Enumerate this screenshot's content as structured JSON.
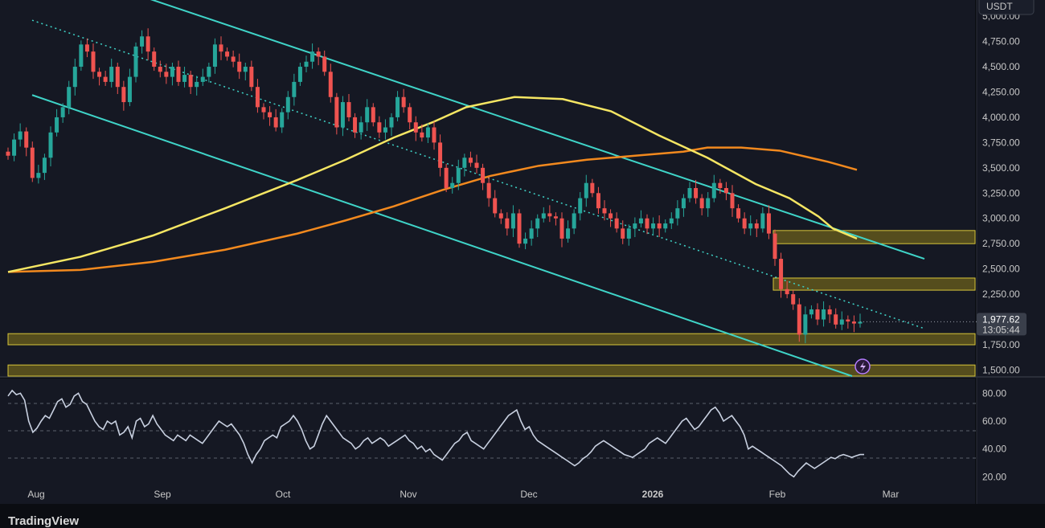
{
  "chart_data": [
    {
      "type": "candlestick",
      "currency_label": "USDT",
      "x_ticks": [
        "Aug",
        "Sep",
        "Oct",
        "Nov",
        "Dec",
        "2026",
        "Feb",
        "Mar"
      ],
      "y_ticks": [
        "5,000.00",
        "4,750.00",
        "4,500.00",
        "4,250.00",
        "4,000.00",
        "3,750.00",
        "3,500.00",
        "3,250.00",
        "3,000.00",
        "2,750.00",
        "2,500.00",
        "2,250.00",
        "1,750.00",
        "1,500.00"
      ],
      "ylim": [
        1440,
        5160
      ],
      "last_price": "1,977.62",
      "countdown": "13:05:44",
      "closes": [
        3620,
        3780,
        3860,
        3700,
        3400,
        3450,
        3600,
        3850,
        4000,
        4100,
        4300,
        4500,
        4720,
        4650,
        4450,
        4400,
        4350,
        4500,
        4300,
        4150,
        4400,
        4700,
        4800,
        4650,
        4500,
        4450,
        4400,
        4500,
        4350,
        4420,
        4300,
        4350,
        4400,
        4500,
        4720,
        4650,
        4600,
        4550,
        4450,
        4500,
        4300,
        4100,
        4050,
        4000,
        3900,
        4050,
        4200,
        4350,
        4500,
        4550,
        4650,
        4600,
        4450,
        4200,
        3900,
        4150,
        4000,
        3850,
        3950,
        4100,
        3950,
        3850,
        3900,
        4000,
        4200,
        4100,
        3950,
        3850,
        3800,
        3900,
        3750,
        3500,
        3300,
        3350,
        3500,
        3600,
        3550,
        3500,
        3350,
        3200,
        3050,
        3000,
        2900,
        3050,
        2750,
        2800,
        2900,
        3000,
        3050,
        3020,
        3000,
        2800,
        2900,
        3050,
        3200,
        3350,
        3250,
        3100,
        3050,
        3000,
        2900,
        2800,
        2900,
        2950,
        3000,
        2900,
        2950,
        2900,
        2950,
        3000,
        3100,
        3200,
        3300,
        3200,
        3100,
        3200,
        3350,
        3300,
        3250,
        3100,
        3000,
        2900,
        2950,
        2900,
        3050,
        2850,
        2600,
        2300,
        2250,
        2150,
        1850,
        2050,
        2100,
        2000,
        2100,
        2050,
        1950,
        2000,
        1980,
        1960,
        1977.62
      ],
      "ma_fast": [
        [
          0,
          2470
        ],
        [
          15,
          2620
        ],
        [
          30,
          2830
        ],
        [
          45,
          3100
        ],
        [
          60,
          3380
        ],
        [
          70,
          3580
        ],
        [
          80,
          3800
        ],
        [
          88,
          3950
        ],
        [
          95,
          4100
        ],
        [
          105,
          4200
        ],
        [
          115,
          4180
        ],
        [
          125,
          4060
        ],
        [
          135,
          3820
        ],
        [
          145,
          3600
        ],
        [
          155,
          3340
        ],
        [
          162,
          3200
        ],
        [
          168,
          3020
        ],
        [
          171,
          2900
        ],
        [
          176,
          2800
        ]
      ],
      "ma_slow": [
        [
          0,
          2470
        ],
        [
          15,
          2490
        ],
        [
          30,
          2570
        ],
        [
          45,
          2690
        ],
        [
          60,
          2850
        ],
        [
          70,
          2980
        ],
        [
          80,
          3120
        ],
        [
          90,
          3280
        ],
        [
          100,
          3420
        ],
        [
          110,
          3520
        ],
        [
          120,
          3580
        ],
        [
          130,
          3620
        ],
        [
          140,
          3660
        ],
        [
          145,
          3700
        ],
        [
          152,
          3700
        ],
        [
          160,
          3670
        ],
        [
          170,
          3560
        ],
        [
          176,
          3480
        ]
      ],
      "channel_upper": [
        [
          0,
          5640
        ],
        [
          190,
          2600
        ]
      ],
      "channel_lower": [
        [
          5,
          4220
        ],
        [
          175,
          1440
        ]
      ],
      "channel_mid": [
        [
          5,
          4960
        ],
        [
          190,
          1910
        ]
      ],
      "zones": [
        [
          2750,
          2880
        ],
        [
          2290,
          2410
        ],
        [
          1750,
          1860
        ],
        [
          1440,
          1550
        ]
      ],
      "rsi": [
        78,
        82,
        79,
        80,
        75,
        60,
        52,
        55,
        60,
        64,
        62,
        68,
        74,
        76,
        70,
        72,
        78,
        80,
        74,
        72,
        66,
        60,
        56,
        54,
        60,
        58,
        60,
        50,
        52,
        56,
        48,
        60,
        62,
        56,
        58,
        64,
        58,
        54,
        50,
        48,
        46,
        50,
        48,
        46,
        50,
        48,
        46,
        44,
        48,
        52,
        56,
        60,
        58,
        56,
        58,
        54,
        50,
        44,
        36,
        30,
        36,
        40,
        46,
        48,
        50,
        48,
        56,
        58,
        60,
        64,
        60,
        54,
        46,
        40,
        42,
        50,
        58,
        64,
        60,
        56,
        52,
        48,
        46,
        44,
        40,
        42,
        46,
        48,
        44,
        46,
        48,
        46,
        42,
        44,
        46,
        48,
        50,
        46,
        44,
        40,
        42,
        38,
        40,
        36,
        34,
        32,
        36,
        40,
        44,
        46,
        50,
        52,
        46,
        44,
        42,
        40,
        44,
        48,
        52,
        56,
        60,
        64,
        66,
        68,
        60,
        54,
        56,
        50,
        46,
        44,
        42,
        40,
        38,
        36,
        34,
        32,
        30,
        28,
        30,
        33,
        35,
        38,
        42,
        44,
        46,
        44,
        42,
        40,
        38,
        36,
        35,
        34,
        36,
        38,
        40,
        44,
        46,
        48,
        46,
        44,
        48,
        52,
        56,
        60,
        62,
        58,
        54,
        56,
        60,
        64,
        68,
        70,
        66,
        60,
        62,
        64,
        60,
        56,
        50,
        40,
        42,
        40,
        38,
        36,
        34,
        32,
        30,
        28,
        25,
        22,
        20,
        24,
        27,
        30,
        28,
        26,
        28,
        30,
        32,
        34,
        33,
        35,
        36,
        35,
        34,
        35,
        36,
        36
      ],
      "rsi_ticks": [
        "80.00",
        "60.00",
        "40.00",
        "20.00"
      ]
    }
  ],
  "footer": {
    "brand": "TradingView"
  }
}
